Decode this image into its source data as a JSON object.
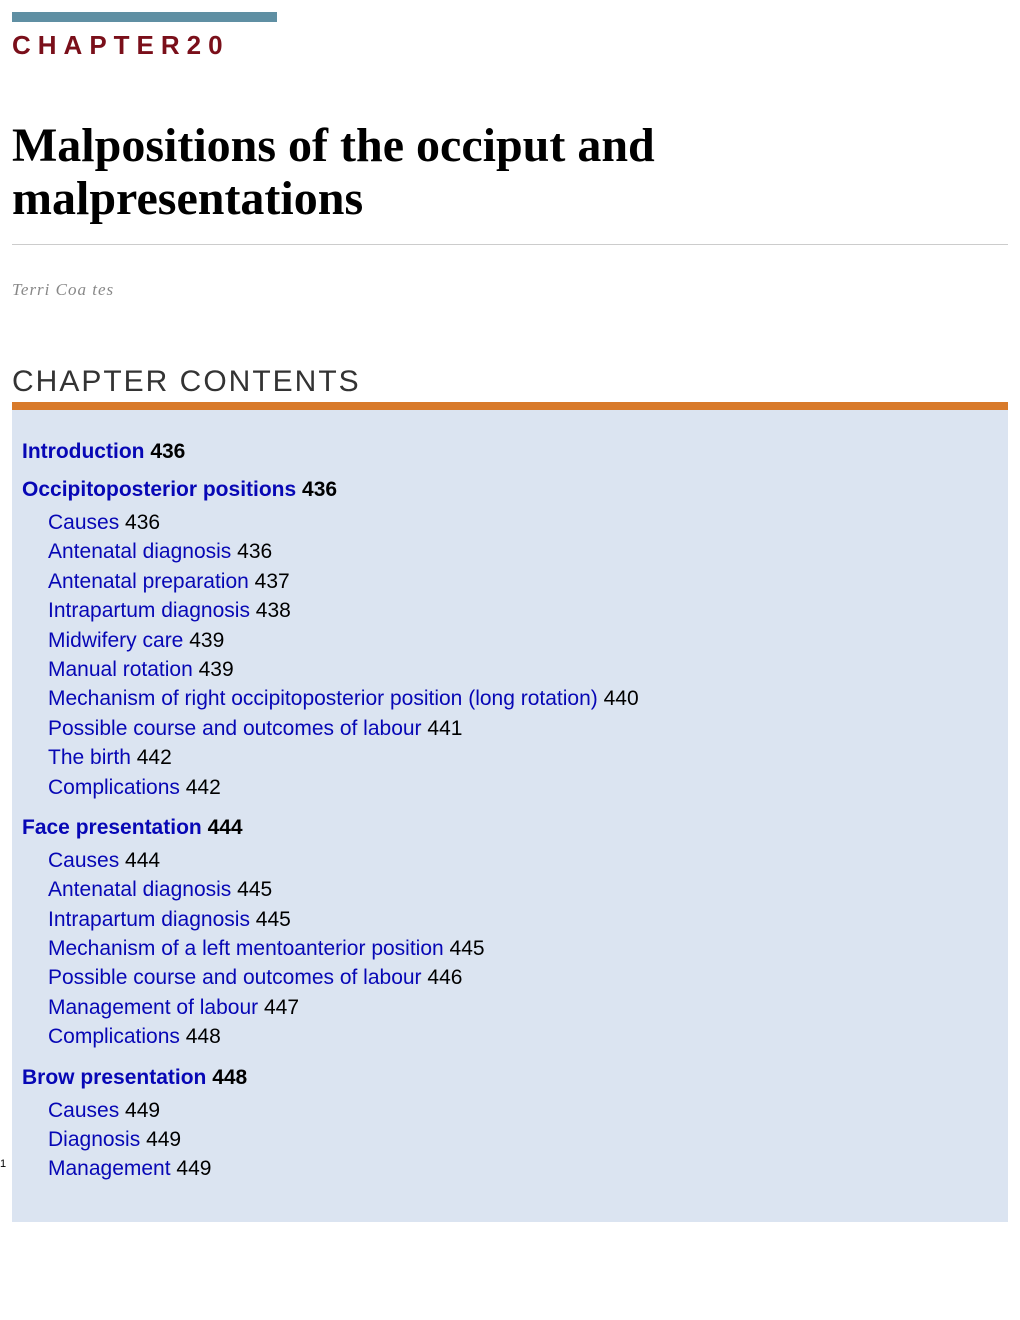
{
  "chapter_label": "CHAPTER20",
  "chapter_title": "Malpositions of the occiput and malpresentations",
  "author": "Terri Coa tes",
  "contents_heading": "CHAPTER CONTENTS",
  "page_number": "1",
  "colors": {
    "top_bar": "#5f8fa3",
    "chapter_label": "#7a0f1a",
    "contents_bar": "#d87a2a",
    "contents_bg": "#dbe4f1",
    "link": "#0707b5",
    "author": "#888888"
  },
  "toc": [
    {
      "title": "Introduction",
      "page": "436",
      "subs": []
    },
    {
      "title": "Occipitoposterior positions",
      "page": "436",
      "subs": [
        {
          "title": "Causes",
          "page": "436"
        },
        {
          "title": "Antenatal diagnosis",
          "page": "436"
        },
        {
          "title": "Antenatal preparation",
          "page": "437"
        },
        {
          "title": "Intrapartum diagnosis",
          "page": "438"
        },
        {
          "title": "Midwifery care",
          "page": "439"
        },
        {
          "title": "Manual rotation",
          "page": "439"
        },
        {
          "title": "Mechanism of right occipitoposterior position (long rotation)",
          "page": "440"
        },
        {
          "title": "Possible course and outcomes of labour",
          "page": "441"
        },
        {
          "title": "The birth",
          "page": "442"
        },
        {
          "title": "Complications",
          "page": "442"
        }
      ]
    },
    {
      "title": "Face presentation",
      "page": "444",
      "subs": [
        {
          "title": "Causes",
          "page": "444"
        },
        {
          "title": "Antenatal diagnosis",
          "page": "445"
        },
        {
          "title": "Intrapartum diagnosis",
          "page": "445"
        },
        {
          "title": "Mechanism of a left mentoanterior position",
          "page": "445"
        },
        {
          "title": "Possible course and outcomes of labour",
          "page": "446"
        },
        {
          "title": "Management of labour",
          "page": "447"
        },
        {
          "title": "Complications",
          "page": "448"
        }
      ]
    },
    {
      "title": "Brow presentation",
      "page": "448",
      "subs": [
        {
          "title": "Causes",
          "page": "449"
        },
        {
          "title": "Diagnosis",
          "page": "449"
        },
        {
          "title": "Management",
          "page": "449"
        }
      ]
    }
  ]
}
